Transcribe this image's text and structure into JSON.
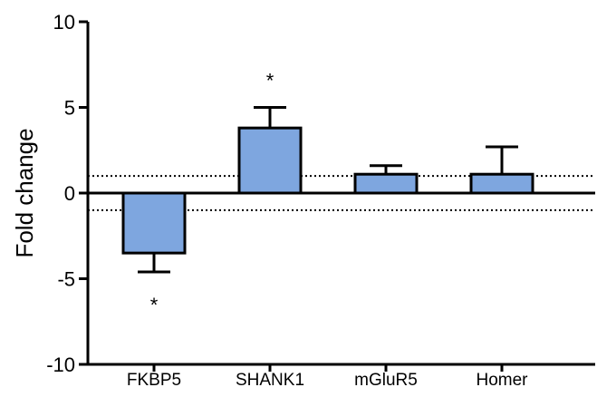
{
  "chart_data": {
    "type": "bar",
    "title": "",
    "xlabel": "",
    "ylabel": "Fold change",
    "ylim": [
      -10,
      10
    ],
    "yticks": [
      10,
      5,
      0,
      -5,
      -10
    ],
    "ytick_labels": [
      "10",
      "5",
      "0",
      "-5",
      "-10"
    ],
    "categories": [
      "FKBP5",
      "SHANK1",
      "mGluR5",
      "Homer"
    ],
    "values": [
      -3.5,
      3.8,
      1.1,
      1.1
    ],
    "errors": [
      1.1,
      1.2,
      0.5,
      1.6
    ],
    "significance": [
      "*",
      "*",
      "",
      ""
    ],
    "reference_lines": [
      1,
      -1
    ],
    "bar_color": "#7ea6df",
    "grid": false
  }
}
